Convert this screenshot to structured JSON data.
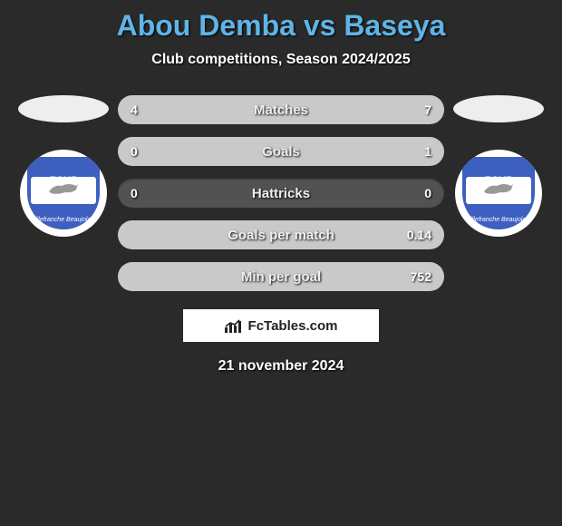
{
  "title": "Abou Demba vs Baseya",
  "subtitle": "Club competitions, Season 2024/2025",
  "footer_brand": "FcTables.com",
  "date_text": "21 november 2024",
  "badge": {
    "top_text": "FCVB",
    "bottom_text": "Villefranche Beaujolais",
    "bg_color": "#3c5fc0"
  },
  "bar_track_color": "#525252",
  "left_fill_color": "#c9c9c9",
  "right_fill_color": "#c9c9c9",
  "stats": [
    {
      "label": "Matches",
      "left_val": "4",
      "right_val": "7",
      "left_pct": 36,
      "right_pct": 64
    },
    {
      "label": "Goals",
      "left_val": "0",
      "right_val": "1",
      "left_pct": 0,
      "right_pct": 100
    },
    {
      "label": "Hattricks",
      "left_val": "0",
      "right_val": "0",
      "left_pct": 0,
      "right_pct": 0
    },
    {
      "label": "Goals per match",
      "left_val": "",
      "right_val": "0.14",
      "left_pct": 0,
      "right_pct": 100
    },
    {
      "label": "Min per goal",
      "left_val": "",
      "right_val": "752",
      "left_pct": 0,
      "right_pct": 100
    }
  ]
}
